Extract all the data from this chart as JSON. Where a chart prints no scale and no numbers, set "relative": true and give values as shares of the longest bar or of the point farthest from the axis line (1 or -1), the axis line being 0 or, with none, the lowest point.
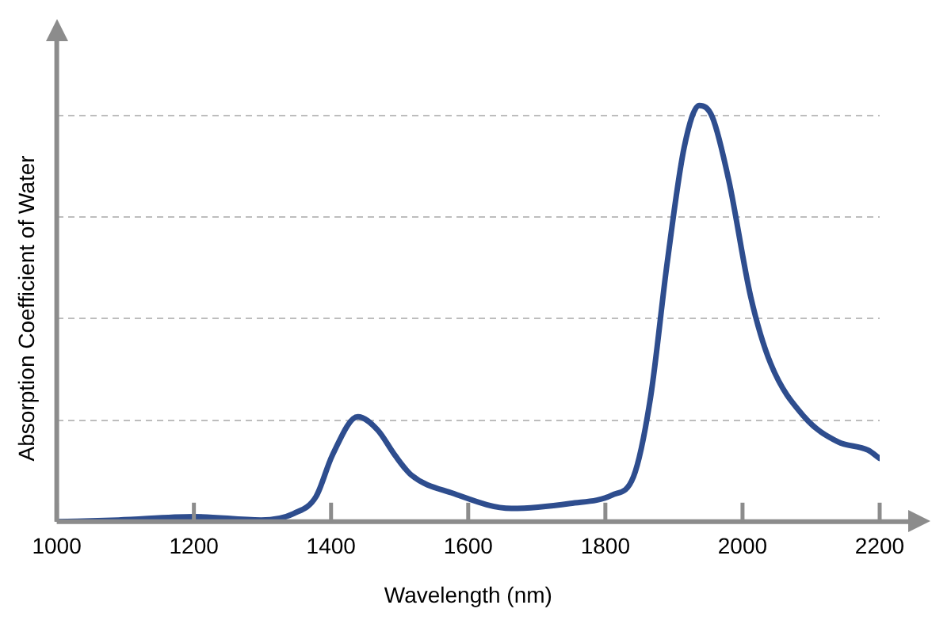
{
  "chart_data": {
    "type": "line",
    "relative": true,
    "xlabel": "Wavelength (nm)",
    "ylabel": "Absorption Coefficient of Water",
    "xlim": [
      1000,
      2200
    ],
    "xticks": [
      1000,
      1200,
      1400,
      1600,
      1800,
      2000,
      2200
    ],
    "grid": "y",
    "legend": false,
    "marker": "none",
    "line_style": "solid",
    "x": [
      1000,
      1090,
      1200,
      1298,
      1346,
      1378,
      1402,
      1439,
      1468,
      1493,
      1517,
      1578,
      1663,
      1749,
      1810,
      1841,
      1866,
      1890,
      1915,
      1937,
      1956,
      1980,
      2012,
      2041,
      2090,
      2139,
      2183,
      2200
    ],
    "series": [
      {
        "color": "#2e4d8e",
        "values": [
          0,
          0.004,
          0.012,
          0.004,
          0.02,
          0.06,
          0.16,
          0.252,
          0.22,
          0.16,
          0.112,
          0.068,
          0.032,
          0.044,
          0.064,
          0.108,
          0.3,
          0.62,
          0.9,
          1,
          0.972,
          0.82,
          0.54,
          0.38,
          0.252,
          0.192,
          0.172,
          0.152
        ]
      }
    ]
  }
}
